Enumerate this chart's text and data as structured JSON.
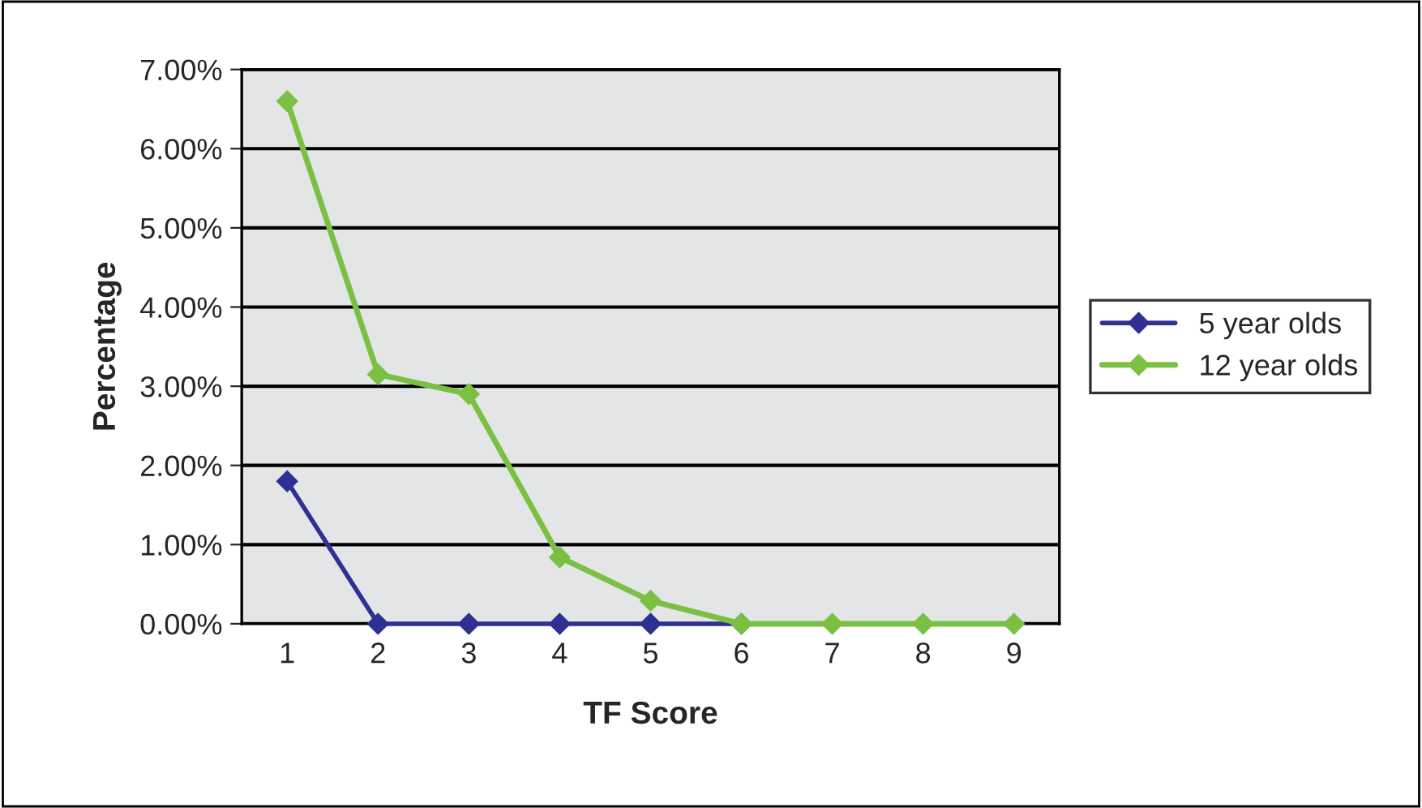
{
  "chart_data": {
    "type": "line",
    "xlabel": "TF Score",
    "ylabel": "Percentage",
    "categories": [
      "1",
      "2",
      "3",
      "4",
      "5",
      "6",
      "7",
      "8",
      "9"
    ],
    "series": [
      {
        "name": "5 year olds",
        "color": "#2e3192",
        "values": [
          1.8,
          0,
          0,
          0,
          0,
          0,
          null,
          null,
          null
        ]
      },
      {
        "name": "12 year olds",
        "color": "#7ac143",
        "values": [
          6.6,
          3.15,
          2.9,
          0.84,
          0.29,
          0,
          0,
          0,
          0
        ]
      }
    ],
    "ylim": [
      0,
      7
    ],
    "yticks": [
      {
        "value": 0,
        "label": "0.00%"
      },
      {
        "value": 1,
        "label": "1.00%"
      },
      {
        "value": 2,
        "label": "2.00%"
      },
      {
        "value": 3,
        "label": "3.00%"
      },
      {
        "value": 4,
        "label": "4.00%"
      },
      {
        "value": 5,
        "label": "5.00%"
      },
      {
        "value": 6,
        "label": "6.00%"
      },
      {
        "value": 7,
        "label": "7.00%"
      }
    ],
    "grid": "y",
    "legend": "right",
    "marker": "diamond",
    "line_style": "solid"
  }
}
